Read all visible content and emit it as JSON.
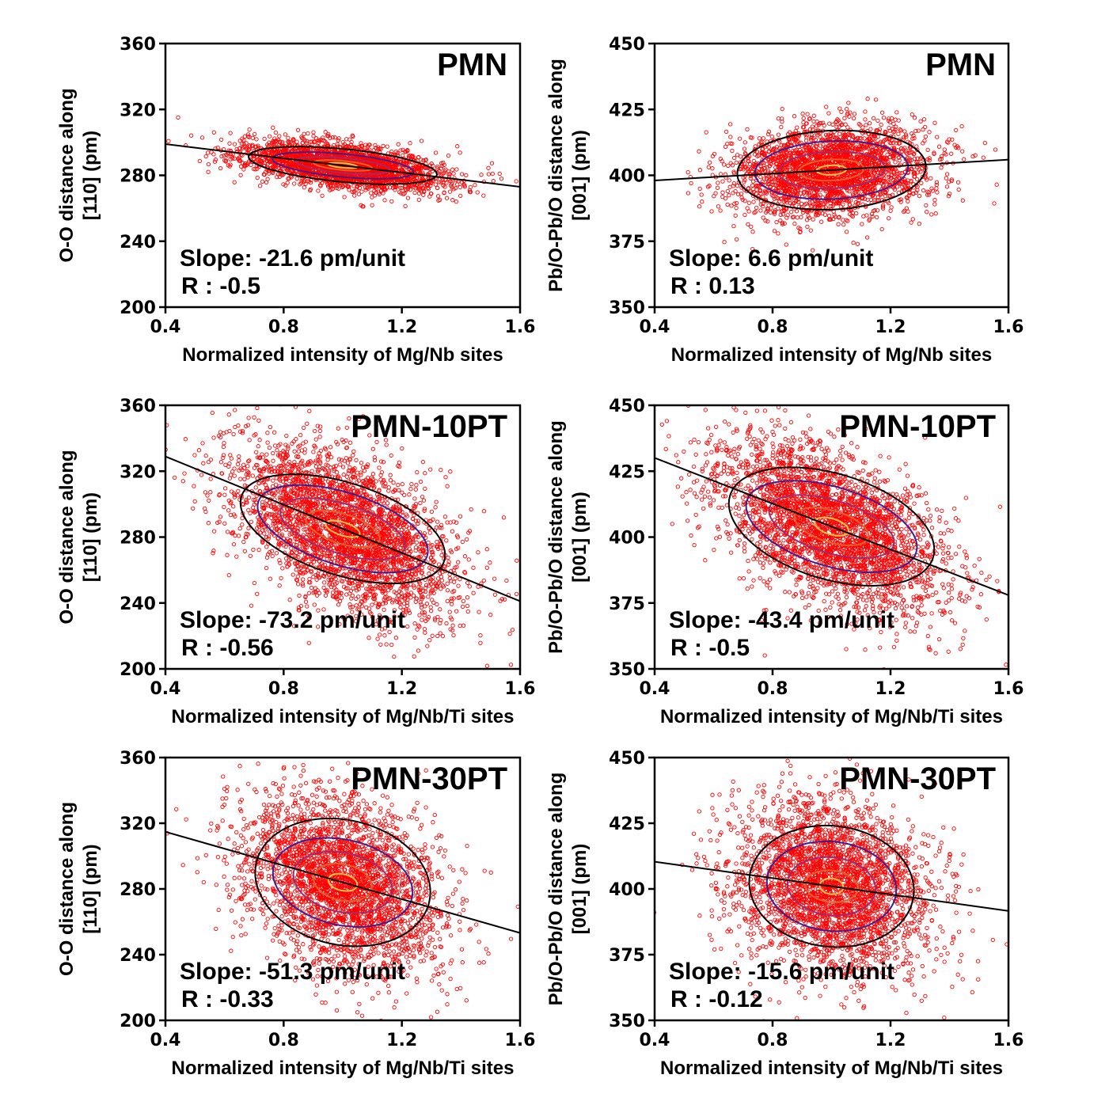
{
  "chart_data": [
    {
      "type": "scatter",
      "title": "PMN",
      "xlabel": "Normalized intensity of Mg/Nb sites",
      "ylabel": [
        "O-O distance along",
        "[110] (pm)"
      ],
      "xlim": [
        0.4,
        1.6
      ],
      "ylim": [
        200,
        360
      ],
      "xticks": [
        "0.4",
        "0.8",
        "1.2",
        "1.6"
      ],
      "yticks": [
        "200",
        "240",
        "280",
        "320",
        "360"
      ],
      "slope_text": "Slope: -21.6 pm/unit",
      "r_text": "R : -0.5",
      "fit": {
        "slope": -21.6,
        "value_at_1": 286
      },
      "cloud": {
        "x_mean": 1.0,
        "x_sd": 0.17,
        "y_sd": 6.5,
        "n": 2600
      },
      "contours": [
        {
          "color": "#000000",
          "x_half": 0.32,
          "y_half": 10
        },
        {
          "color": "#3b1f8c",
          "x_half": 0.24,
          "y_half": 7
        },
        {
          "color": "#9b2d6e",
          "x_half": 0.16,
          "y_half": 4.5
        },
        {
          "color": "#e0612b",
          "x_half": 0.1,
          "y_half": 2.8
        },
        {
          "color": "#f6c546",
          "x_half": 0.05,
          "y_half": 1.4
        }
      ]
    },
    {
      "type": "scatter",
      "title": "PMN",
      "xlabel": "Normalized intensity of Mg/Nb sites",
      "ylabel": [
        "Pb/O-Pb/O distance along",
        "[001] (pm)"
      ],
      "xlim": [
        0.4,
        1.6
      ],
      "ylim": [
        350,
        450
      ],
      "xticks": [
        "0.4",
        "0.8",
        "1.2",
        "1.6"
      ],
      "yticks": [
        "350",
        "375",
        "400",
        "425",
        "450"
      ],
      "slope_text": "Slope: 6.6 pm/unit",
      "r_text": "R : 0.13",
      "fit": {
        "slope": 6.6,
        "value_at_1": 402
      },
      "cloud": {
        "x_mean": 1.0,
        "x_sd": 0.17,
        "y_sd": 8.5,
        "n": 2600
      },
      "contours": [
        {
          "color": "#000000",
          "x_half": 0.32,
          "y_half": 15
        },
        {
          "color": "#3b1f8c",
          "x_half": 0.26,
          "y_half": 11
        },
        {
          "color": "#9b2d6e",
          "x_half": 0.18,
          "y_half": 7
        },
        {
          "color": "#e0612b",
          "x_half": 0.11,
          "y_half": 4
        },
        {
          "color": "#f6c546",
          "x_half": 0.05,
          "y_half": 1.8
        }
      ]
    },
    {
      "type": "scatter",
      "title": "PMN-10PT",
      "xlabel": "Normalized intensity of Mg/Nb/Ti sites",
      "ylabel": [
        "O-O distance along",
        "[110] (pm)"
      ],
      "xlim": [
        0.4,
        1.6
      ],
      "ylim": [
        200,
        360
      ],
      "xticks": [
        "0.4",
        "0.8",
        "1.2",
        "1.6"
      ],
      "yticks": [
        "200",
        "240",
        "280",
        "320",
        "360"
      ],
      "slope_text": "Slope: -73.2 pm/unit",
      "r_text": "R : -0.56",
      "fit": {
        "slope": -73.2,
        "value_at_1": 285
      },
      "cloud": {
        "x_mean": 1.0,
        "x_sd": 0.19,
        "y_sd": 22,
        "n": 3200
      },
      "contours": [
        {
          "color": "#000000",
          "x_half": 0.36,
          "y_half": 28
        },
        {
          "color": "#3b1f8c",
          "x_half": 0.3,
          "y_half": 22
        },
        {
          "color": "#9b2d6e",
          "x_half": 0.22,
          "y_half": 15
        },
        {
          "color": "#e0612b",
          "x_half": 0.13,
          "y_half": 9
        },
        {
          "color": "#f6c546",
          "x_half": 0.06,
          "y_half": 4
        }
      ]
    },
    {
      "type": "scatter",
      "title": "PMN-10PT",
      "xlabel": "Normalized intensity of Mg/Nb/Ti sites",
      "ylabel": [
        "Pb/O-Pb/O distance along",
        "[001] (pm)"
      ],
      "xlim": [
        0.4,
        1.6
      ],
      "ylim": [
        350,
        450
      ],
      "xticks": [
        "0.4",
        "0.8",
        "1.2",
        "1.6"
      ],
      "yticks": [
        "350",
        "375",
        "400",
        "425",
        "450"
      ],
      "slope_text": "Slope: -43.4 pm/unit",
      "r_text": "R : -0.5",
      "fit": {
        "slope": -43.4,
        "value_at_1": 404
      },
      "cloud": {
        "x_mean": 1.0,
        "x_sd": 0.19,
        "y_sd": 14,
        "n": 3200
      },
      "contours": [
        {
          "color": "#000000",
          "x_half": 0.36,
          "y_half": 20
        },
        {
          "color": "#3b1f8c",
          "x_half": 0.3,
          "y_half": 15
        },
        {
          "color": "#9b2d6e",
          "x_half": 0.22,
          "y_half": 10
        },
        {
          "color": "#e0612b",
          "x_half": 0.13,
          "y_half": 6
        },
        {
          "color": "#f6c546",
          "x_half": 0.06,
          "y_half": 3
        }
      ]
    },
    {
      "type": "scatter",
      "title": "PMN-30PT",
      "xlabel": "Normalized intensity of Mg/Nb/Ti sites",
      "ylabel": [
        "O-O distance along",
        "[110] (pm)"
      ],
      "xlim": [
        0.4,
        1.6
      ],
      "ylim": [
        200,
        360
      ],
      "xticks": [
        "0.4",
        "0.8",
        "1.2",
        "1.6"
      ],
      "yticks": [
        "200",
        "240",
        "280",
        "320",
        "360"
      ],
      "slope_text": "Slope: -51.3 pm/unit",
      "r_text": "R : -0.33",
      "fit": {
        "slope": -51.3,
        "value_at_1": 284
      },
      "cloud": {
        "x_mean": 1.0,
        "x_sd": 0.17,
        "y_sd": 25,
        "n": 3000
      },
      "contours": [
        {
          "color": "#000000",
          "x_half": 0.3,
          "y_half": 38
        },
        {
          "color": "#3b1f8c",
          "x_half": 0.24,
          "y_half": 26
        },
        {
          "color": "#9b2d6e",
          "x_half": 0.17,
          "y_half": 18
        },
        {
          "color": "#e0612b",
          "x_half": 0.1,
          "y_half": 11
        },
        {
          "color": "#f6c546",
          "x_half": 0.05,
          "y_half": 5
        }
      ]
    },
    {
      "type": "scatter",
      "title": "PMN-30PT",
      "xlabel": "Normalized intensity of Mg/Nb/Ti sites",
      "ylabel": [
        "Pb/O-Pb/O distance along",
        "[001] (pm)"
      ],
      "xlim": [
        0.4,
        1.6
      ],
      "ylim": [
        350,
        450
      ],
      "xticks": [
        "0.4",
        "0.8",
        "1.2",
        "1.6"
      ],
      "yticks": [
        "350",
        "375",
        "400",
        "425",
        "450"
      ],
      "slope_text": "Slope: -15.6 pm/unit",
      "r_text": "R : -0.12",
      "fit": {
        "slope": -15.6,
        "value_at_1": 401
      },
      "cloud": {
        "x_mean": 1.0,
        "x_sd": 0.17,
        "y_sd": 16,
        "n": 3000
      },
      "contours": [
        {
          "color": "#000000",
          "x_half": 0.28,
          "y_half": 23
        },
        {
          "color": "#3b1f8c",
          "x_half": 0.22,
          "y_half": 17
        },
        {
          "color": "#9b2d6e",
          "x_half": 0.15,
          "y_half": 11
        },
        {
          "color": "#e0612b",
          "x_half": 0.09,
          "y_half": 6
        },
        {
          "color": "#f6c546",
          "x_half": 0.04,
          "y_half": 3
        }
      ]
    }
  ],
  "colors": {
    "points": "#ff0000",
    "fit_line": "#000000",
    "axes": "#000000"
  }
}
